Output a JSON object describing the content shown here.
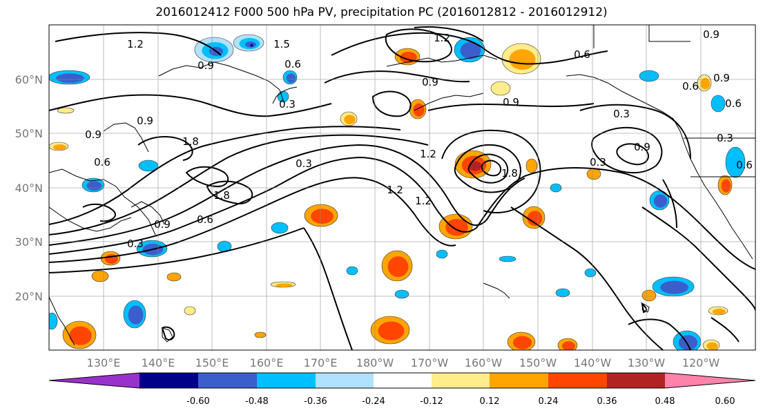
{
  "title": "2016012412 F000 500 hPa PV, precipitation PC (2016012812 - 2016012912)",
  "lat_labels": [
    "60°N",
    "50°N",
    "40°N",
    "30°N",
    "20°N"
  ],
  "lon_labels": [
    "130°E",
    "140°E",
    "150°E",
    "160°E",
    "170°E",
    "180°W",
    "170°W",
    "160°W",
    "150°W",
    "140°W",
    "130°W",
    "120°W"
  ],
  "colorbar": {
    "tick_labels": [
      "-0.60",
      "-0.48",
      "-0.36",
      "-0.24",
      "-0.12",
      "0.12",
      "0.24",
      "0.36",
      "0.48",
      "0.60"
    ],
    "colors": [
      "#9932cc",
      "#00008b",
      "#3a5fcd",
      "#00bfff",
      "#b0e2ff",
      "#ffffff",
      "#ffec8b",
      "#ffa500",
      "#ff4500",
      "#b22222",
      "#ff82ab"
    ]
  },
  "contour_labels": [
    "1.2",
    "1.5",
    "1.2",
    "0.9",
    "0.6",
    "0.6",
    "0.9",
    "0.3",
    "0.9",
    "0.6",
    "0.9",
    "0.9",
    "0.3",
    "0.9",
    "0.6",
    "0.9",
    "1.8",
    "0.6",
    "0.3",
    "1.2",
    "1.2",
    "1.2",
    "1.8",
    "0.9",
    "0.3",
    "0.3",
    "0.6",
    "1.8",
    "0.9",
    "0.6",
    "0.3"
  ]
}
